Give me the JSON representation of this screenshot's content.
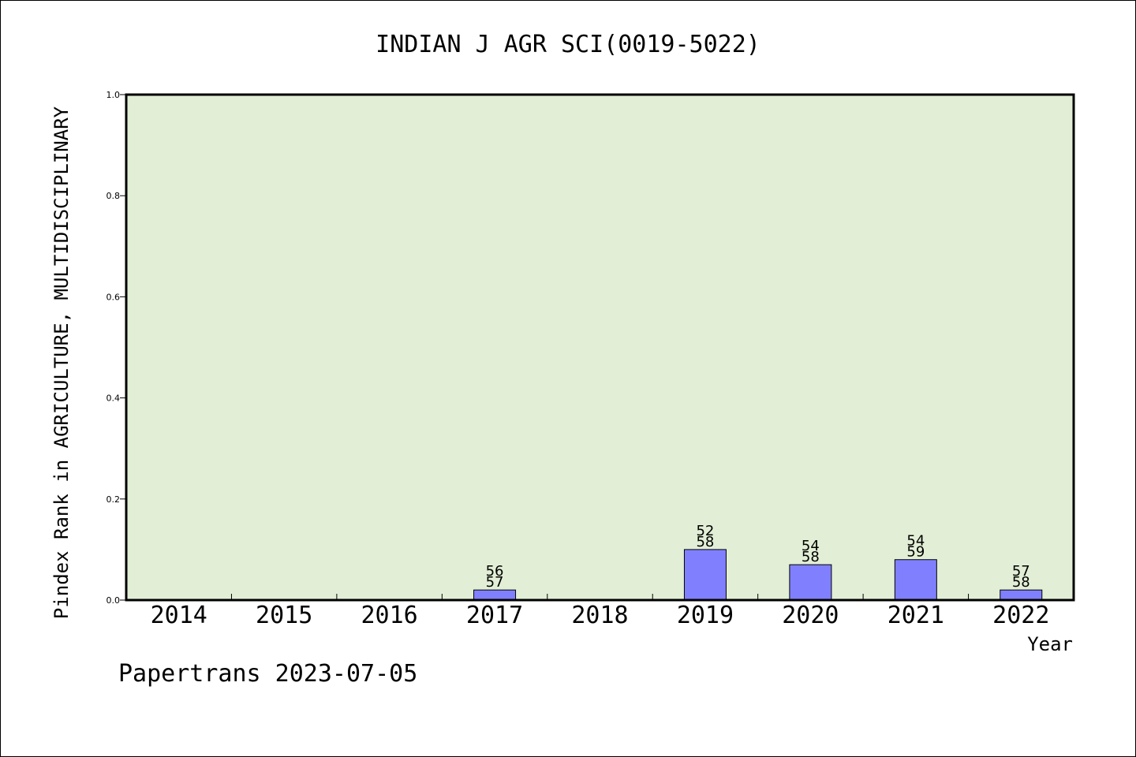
{
  "chart_data": {
    "type": "bar",
    "title": "INDIAN J AGR SCI(0019-5022)",
    "xlabel": "Year",
    "ylabel": "Pindex Rank in AGRICULTURE, MULTIDISCIPLINARY",
    "categories": [
      "2014",
      "2015",
      "2016",
      "2017",
      "2018",
      "2019",
      "2020",
      "2021",
      "2022"
    ],
    "values": [
      null,
      null,
      null,
      0.02,
      null,
      0.1,
      0.07,
      0.08,
      0.02
    ],
    "bar_labels": [
      null,
      null,
      null,
      [
        "56",
        "57"
      ],
      null,
      [
        "52",
        "58"
      ],
      [
        "54",
        "58"
      ],
      [
        "54",
        "59"
      ],
      [
        "57",
        "58"
      ]
    ],
    "ylim": [
      0,
      1.0
    ],
    "yticks": [
      "0.0",
      "0.2",
      "0.4",
      "0.6",
      "0.8",
      "1.0"
    ],
    "grid": false,
    "colors": {
      "plot_background": "#e2efd6",
      "bar_fill": "#8080ff",
      "bar_stroke": "#000000",
      "axis": "#000000"
    }
  },
  "footer": {
    "credit": "Papertrans 2023-07-05"
  }
}
